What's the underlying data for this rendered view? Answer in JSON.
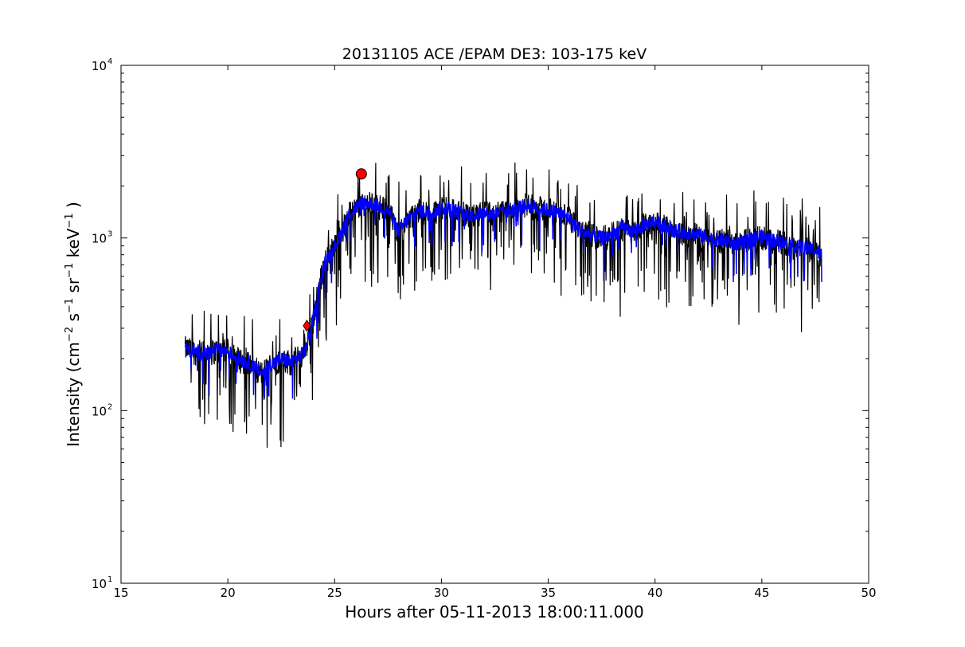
{
  "chart_data": {
    "type": "line",
    "title": "20131105 ACE /EPAM DE3: 103-175 keV",
    "xlabel": "Hours after 05-11-2013 18:00:11.000",
    "ylabel_parts": [
      "Intensity (cm",
      "−2",
      " s",
      "−1",
      " sr",
      "−1",
      " keV",
      "−1",
      " )"
    ],
    "xlim": [
      15,
      50
    ],
    "ylim": [
      10,
      10000
    ],
    "yscale": "log",
    "xticks": [
      "15",
      "20",
      "25",
      "30",
      "35",
      "40",
      "45",
      "50"
    ],
    "yticks": [
      {
        "value": 10,
        "base": "10",
        "exp": "1"
      },
      {
        "value": 100,
        "base": "10",
        "exp": "2"
      },
      {
        "value": 1000,
        "base": "10",
        "exp": "3"
      },
      {
        "value": 10000,
        "base": "10",
        "exp": "4"
      }
    ],
    "grid": false,
    "legend": "none",
    "colors": {
      "raw": "#000000",
      "smoothed": "#0000ff",
      "marker": "#ff0000"
    },
    "series": [
      {
        "role": "raw",
        "x": [
          18.0,
          18.5,
          19.0,
          19.5,
          20.0,
          20.5,
          21.0,
          21.3,
          21.6,
          22.0,
          22.3,
          22.6,
          23.0,
          23.3,
          23.6,
          23.9,
          24.1,
          24.3,
          24.6,
          25.0,
          25.3,
          25.6,
          26.0,
          26.3,
          26.6,
          27.0,
          27.5,
          28.0,
          28.5,
          29.0,
          29.5,
          30.0,
          30.5,
          31.0,
          31.5,
          32.0,
          32.5,
          33.0,
          33.5,
          34.0,
          34.5,
          35.0,
          35.5,
          36.0,
          36.5,
          37.0,
          37.5,
          38.0,
          38.5,
          39.0,
          39.5,
          40.0,
          40.5,
          41.0,
          41.5,
          42.0,
          42.5,
          43.0,
          43.5,
          44.0,
          44.5,
          45.0,
          45.5,
          46.0,
          46.5,
          47.0,
          47.5,
          47.8
        ],
        "y": [
          230,
          220,
          215,
          225,
          220,
          200,
          190,
          175,
          165,
          185,
          195,
          200,
          190,
          205,
          220,
          300,
          400,
          550,
          750,
          900,
          1050,
          1350,
          1500,
          1600,
          1600,
          1550,
          1450,
          1100,
          1300,
          1450,
          1400,
          1500,
          1450,
          1400,
          1350,
          1400,
          1380,
          1420,
          1500,
          1550,
          1500,
          1450,
          1400,
          1300,
          1100,
          1050,
          1000,
          1050,
          1150,
          1100,
          1200,
          1250,
          1150,
          1100,
          1080,
          1050,
          1000,
          980,
          950,
          930,
          1000,
          1020,
          980,
          950,
          900,
          880,
          850,
          800
        ]
      },
      {
        "role": "smoothed",
        "x": [
          18.0,
          18.5,
          19.0,
          19.5,
          20.0,
          20.5,
          21.0,
          21.3,
          21.6,
          22.0,
          22.3,
          22.6,
          23.0,
          23.3,
          23.6,
          23.9,
          24.1,
          24.3,
          24.6,
          25.0,
          25.3,
          25.6,
          26.0,
          26.3,
          26.6,
          27.0,
          27.5,
          28.0,
          28.5,
          29.0,
          29.5,
          30.0,
          30.5,
          31.0,
          31.5,
          32.0,
          32.5,
          33.0,
          33.5,
          34.0,
          34.5,
          35.0,
          35.5,
          36.0,
          36.5,
          37.0,
          37.5,
          38.0,
          38.5,
          39.0,
          39.5,
          40.0,
          40.5,
          41.0,
          41.5,
          42.0,
          42.5,
          43.0,
          43.5,
          44.0,
          44.5,
          45.0,
          45.5,
          46.0,
          46.5,
          47.0,
          47.5,
          47.8
        ],
        "y": [
          230,
          220,
          215,
          225,
          220,
          200,
          190,
          175,
          165,
          185,
          195,
          200,
          190,
          205,
          220,
          300,
          400,
          550,
          750,
          900,
          1050,
          1350,
          1500,
          1600,
          1600,
          1550,
          1450,
          1100,
          1300,
          1450,
          1400,
          1500,
          1450,
          1400,
          1350,
          1400,
          1380,
          1420,
          1500,
          1550,
          1500,
          1450,
          1400,
          1300,
          1100,
          1050,
          1000,
          1050,
          1150,
          1100,
          1200,
          1250,
          1150,
          1100,
          1080,
          1050,
          1000,
          980,
          950,
          930,
          1000,
          1020,
          980,
          950,
          900,
          880,
          850,
          800
        ]
      }
    ],
    "markers": [
      {
        "shape": "diamond",
        "x": 23.7,
        "y": 310
      },
      {
        "shape": "circle",
        "x": 26.25,
        "y": 2350
      }
    ]
  }
}
